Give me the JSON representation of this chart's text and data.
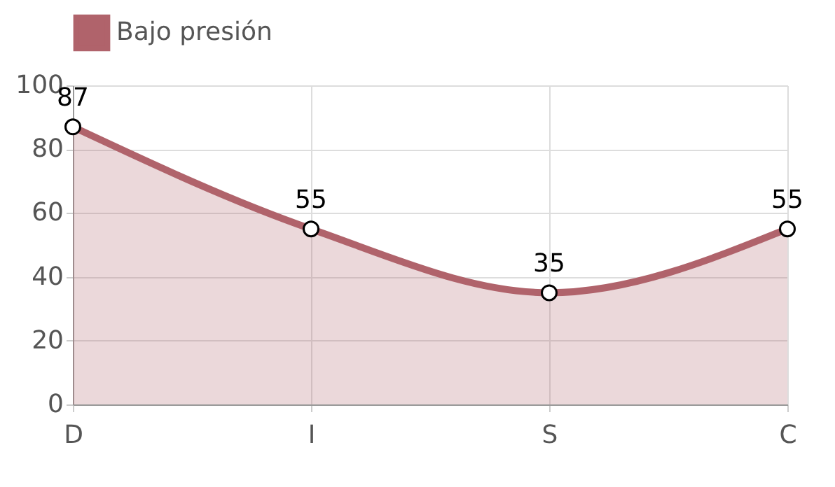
{
  "chart_data": {
    "type": "area",
    "categories": [
      "D",
      "I",
      "S",
      "C"
    ],
    "series": [
      {
        "name": "Bajo presión",
        "color": "#b0636b",
        "values": [
          87,
          55,
          35,
          55
        ]
      }
    ],
    "ylim": [
      0,
      100
    ],
    "yticks": [
      0,
      20,
      40,
      60,
      80,
      100
    ],
    "grid": true,
    "legend": "top",
    "marker": "circle",
    "line_style": "solid",
    "data_labels": true
  }
}
